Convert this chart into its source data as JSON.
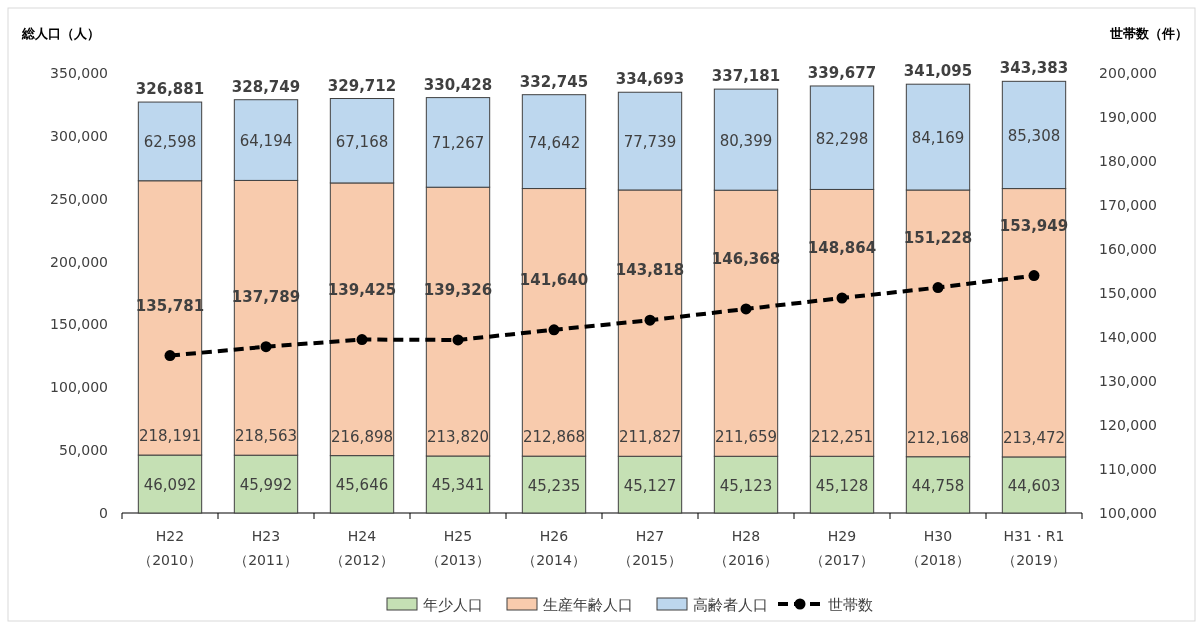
{
  "chart_data": {
    "type": "bar",
    "stacked": true,
    "categories": [
      "H22\n（2010）",
      "H23\n（2011）",
      "H24\n（2012）",
      "H25\n（2013）",
      "H26\n（2014）",
      "H27\n（2015）",
      "H28\n（2016）",
      "H29\n（2017）",
      "H30\n（2018）",
      "H31・R1\n（2019）"
    ],
    "ylabel": "総人口（人）",
    "y2label": "世帯数（件）",
    "ylim": [
      0,
      350000
    ],
    "yticks": [
      0,
      {
        "value": 50000,
        "label": "50,000"
      },
      {
        "value": 100000,
        "label": "100,000"
      },
      {
        "value": 150000,
        "label": "150,000"
      },
      {
        "value": 200000,
        "label": "200,000"
      },
      {
        "value": 250000,
        "label": "250,000"
      },
      {
        "value": 300000,
        "label": "300,000"
      },
      {
        "value": 350000,
        "label": "350,000"
      }
    ],
    "y2lim": [
      100000,
      200000
    ],
    "y2ticks": [
      {
        "value": 100000,
        "label": "100,000"
      },
      {
        "value": 110000,
        "label": "110,000"
      },
      {
        "value": 120000,
        "label": "120,000"
      },
      {
        "value": 130000,
        "label": "130,000"
      },
      {
        "value": 140000,
        "label": "140,000"
      },
      {
        "value": 150000,
        "label": "150,000"
      },
      {
        "value": 160000,
        "label": "160,000"
      },
      {
        "value": 170000,
        "label": "170,000"
      },
      {
        "value": 180000,
        "label": "180,000"
      },
      {
        "value": 190000,
        "label": "190,000"
      },
      {
        "value": 200000,
        "label": "200,000"
      }
    ],
    "grid": false,
    "legend": "bottom",
    "series": [
      {
        "name": "年少人口",
        "color": "#c5e0b4",
        "values": [
          46092,
          45992,
          45646,
          45341,
          45235,
          45127,
          45123,
          45128,
          44758,
          44603
        ],
        "value_labels": [
          "46,092",
          "45,992",
          "45,646",
          "45,341",
          "45,235",
          "45,127",
          "45,123",
          "45,128",
          "44,758",
          "44,603"
        ]
      },
      {
        "name": "生産年齢人口",
        "color": "#f8cbad",
        "values": [
          218191,
          218563,
          216898,
          213820,
          212868,
          211827,
          211659,
          212251,
          212168,
          213472
        ],
        "value_labels": [
          "218,191",
          "218,563",
          "216,898",
          "213,820",
          "212,868",
          "211,827",
          "211,659",
          "212,251",
          "212,168",
          "213,472"
        ]
      },
      {
        "name": "高齢者人口",
        "color": "#bdd7ee",
        "values": [
          62598,
          64194,
          67168,
          71267,
          74642,
          77739,
          80399,
          82298,
          84169,
          85308
        ],
        "value_labels": [
          "62,598",
          "64,194",
          "67,168",
          "71,267",
          "74,642",
          "77,739",
          "80,399",
          "82,298",
          "84,169",
          "85,308"
        ]
      },
      {
        "name": "世帯数",
        "type": "line",
        "axis": "y2",
        "color": "#000000",
        "marker": "circle",
        "line_style": "dashed",
        "values": [
          135781,
          137789,
          139425,
          139326,
          141640,
          143818,
          146368,
          148864,
          151228,
          153949
        ],
        "value_labels": [
          "135,781",
          "137,789",
          "139,425",
          "139,326",
          "141,640",
          "143,818",
          "146,368",
          "148,864",
          "151,228",
          "153,949"
        ]
      }
    ],
    "totals": [
      "326,881",
      "328,749",
      "329,712",
      "330,428",
      "332,745",
      "334,693",
      "337,181",
      "339,677",
      "341,095",
      "343,383"
    ]
  }
}
